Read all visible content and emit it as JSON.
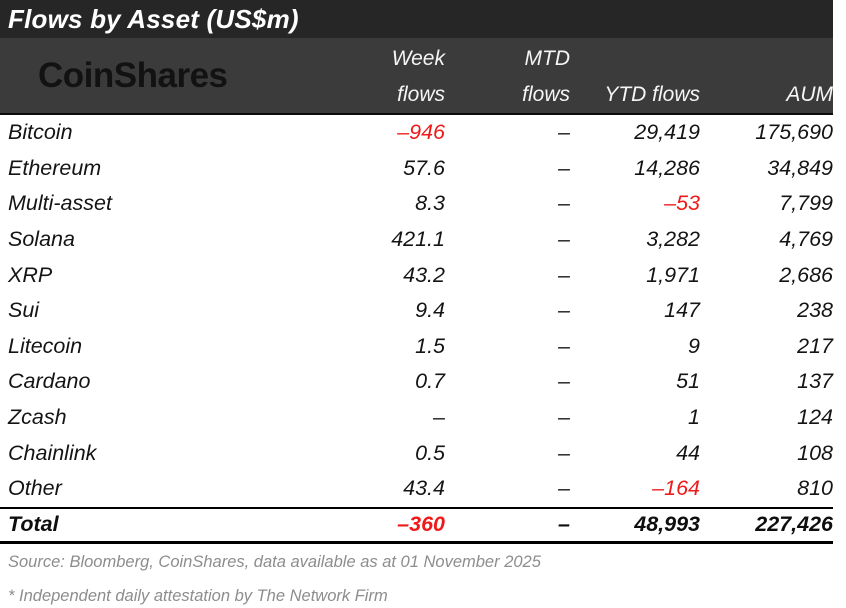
{
  "title": "Flows by Asset (US$m)",
  "brand": {
    "logo_text": "CoinShares"
  },
  "colors": {
    "title_bar_bg": "#262626",
    "header_bg": "#3b3b3b",
    "negative_red": "#ee1b1b",
    "footer_text": "#8d8d8d"
  },
  "table": {
    "header": {
      "week_line1": "Week",
      "week_line2": "flows",
      "mtd_line1": "MTD",
      "mtd_line2": "flows",
      "ytd": "YTD flows",
      "aum": "AUM"
    },
    "rows": [
      {
        "asset": "Bitcoin",
        "week": "–946",
        "mtd": "–",
        "ytd": "29,419",
        "aum": "175,690"
      },
      {
        "asset": "Ethereum",
        "week": "57.6",
        "mtd": "–",
        "ytd": "14,286",
        "aum": "34,849"
      },
      {
        "asset": "Multi-asset",
        "week": "8.3",
        "mtd": "–",
        "ytd": "–53",
        "aum": "7,799"
      },
      {
        "asset": "Solana",
        "week": "421.1",
        "mtd": "–",
        "ytd": "3,282",
        "aum": "4,769"
      },
      {
        "asset": "XRP",
        "week": "43.2",
        "mtd": "–",
        "ytd": "1,971",
        "aum": "2,686"
      },
      {
        "asset": "Sui",
        "week": "9.4",
        "mtd": "–",
        "ytd": "147",
        "aum": "238"
      },
      {
        "asset": "Litecoin",
        "week": "1.5",
        "mtd": "–",
        "ytd": "9",
        "aum": "217"
      },
      {
        "asset": "Cardano",
        "week": "0.7",
        "mtd": "–",
        "ytd": "51",
        "aum": "137"
      },
      {
        "asset": "Zcash",
        "week": "–",
        "mtd": "–",
        "ytd": "1",
        "aum": "124"
      },
      {
        "asset": "Chainlink",
        "week": "0.5",
        "mtd": "–",
        "ytd": "44",
        "aum": "108"
      },
      {
        "asset": "Other",
        "week": "43.4",
        "mtd": "–",
        "ytd": "–164",
        "aum": "810"
      }
    ],
    "total": {
      "asset": "Total",
      "week": "–360",
      "mtd": "–",
      "ytd": "48,993",
      "aum": "227,426"
    }
  },
  "footer": {
    "source": "Source: Bloomberg, CoinShares, data available as at 01 November 2025",
    "attestation": "* Independent daily attestation by The Network Firm"
  },
  "chart_data": {
    "type": "table",
    "title": "Flows by Asset (US$m)",
    "columns": [
      "Asset",
      "Week flows",
      "MTD flows",
      "YTD flows",
      "AUM"
    ],
    "rows": [
      [
        "Bitcoin",
        -946,
        null,
        29419,
        175690
      ],
      [
        "Ethereum",
        57.6,
        null,
        14286,
        34849
      ],
      [
        "Multi-asset",
        8.3,
        null,
        -53,
        7799
      ],
      [
        "Solana",
        421.1,
        null,
        3282,
        4769
      ],
      [
        "XRP",
        43.2,
        null,
        1971,
        2686
      ],
      [
        "Sui",
        9.4,
        null,
        147,
        238
      ],
      [
        "Litecoin",
        1.5,
        null,
        9,
        217
      ],
      [
        "Cardano",
        0.7,
        null,
        51,
        137
      ],
      [
        "Zcash",
        null,
        null,
        1,
        124
      ],
      [
        "Chainlink",
        0.5,
        null,
        44,
        108
      ],
      [
        "Other",
        43.4,
        null,
        -164,
        810
      ],
      [
        "Total",
        -360,
        null,
        48993,
        227426
      ]
    ]
  }
}
